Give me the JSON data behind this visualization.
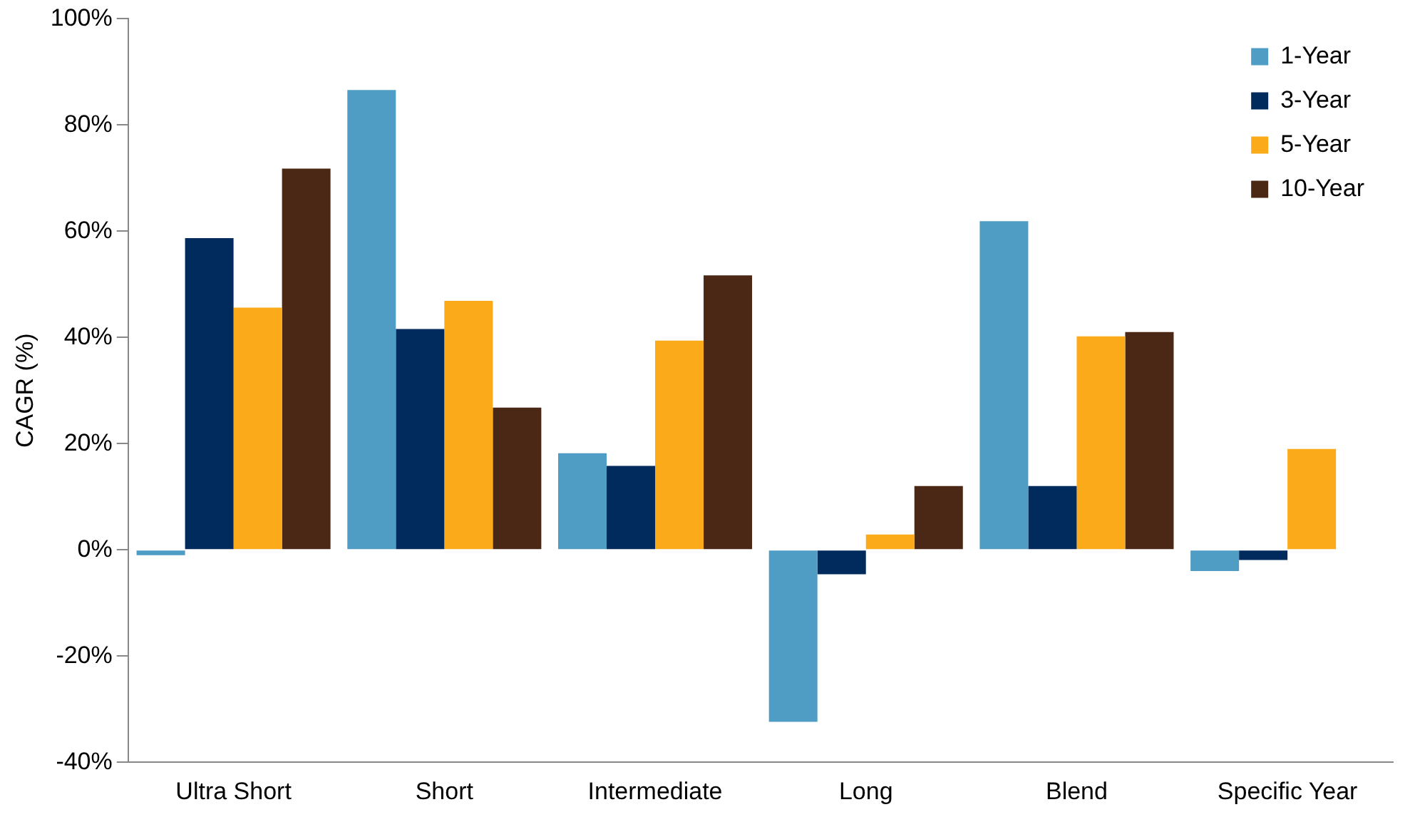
{
  "chart_data": {
    "type": "bar",
    "ylabel": "CAGR (%)",
    "categories": [
      "Ultra Short",
      "Short",
      "Intermediate",
      "Long",
      "Blend",
      "Specific Year"
    ],
    "series": [
      {
        "name": "1-Year",
        "color": "#4f9cc4",
        "values": [
          -1,
          86.6,
          18.2,
          -32.4,
          61.9,
          -4
        ]
      },
      {
        "name": "3-Year",
        "color": "#002b5c",
        "values": [
          58.7,
          41.6,
          15.8,
          -4.6,
          12,
          -1.9
        ]
      },
      {
        "name": "5-Year",
        "color": "#fbaa19",
        "values": [
          45.6,
          46.9,
          39.4,
          2.9,
          40.2,
          19
        ]
      },
      {
        "name": "10-Year",
        "color": "#4b2816",
        "values": [
          71.8,
          26.8,
          51.7,
          12,
          41,
          null
        ]
      }
    ],
    "ylim": [
      -40,
      100
    ],
    "yticks": [
      {
        "value": -40,
        "label": "-40%"
      },
      {
        "value": -20,
        "label": "-20%"
      },
      {
        "value": 0,
        "label": "0%"
      },
      {
        "value": 20,
        "label": "20%"
      },
      {
        "value": 40,
        "label": "40%"
      },
      {
        "value": 60,
        "label": "60%"
      },
      {
        "value": 80,
        "label": "80%"
      },
      {
        "value": 100,
        "label": "100%"
      }
    ],
    "grid": false,
    "legend": "top right"
  }
}
